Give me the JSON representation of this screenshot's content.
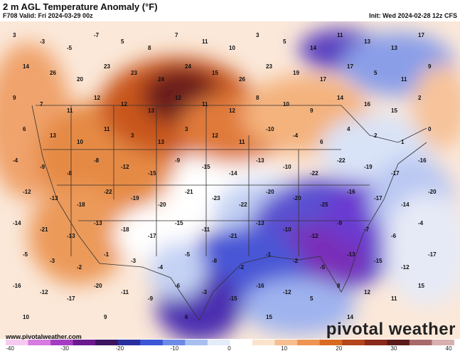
{
  "header": {
    "title": "2 m AGL Temperature Anomaly (°F)",
    "valid": "F708 Valid: Fri 2024-03-29 00z",
    "init": "Init: Wed 2024-02-28 12z CFS"
  },
  "footer": {
    "site": "www.pivotalweather.com",
    "brand": "pivotal weather"
  },
  "colorbar": {
    "ticks": [
      "-40",
      "-30",
      "-20",
      "-10",
      "0",
      "10",
      "20",
      "30",
      "40"
    ],
    "colors": [
      "#f7c9f0",
      "#d67be0",
      "#a53cc4",
      "#6b1a8e",
      "#3b1460",
      "#2a2fa0",
      "#3b57d6",
      "#6d8ae6",
      "#a9bff2",
      "#e3ecfb",
      "#ffffff",
      "#fbe3cc",
      "#f7be8f",
      "#ef9452",
      "#d86a22",
      "#b3461a",
      "#8a2a1a",
      "#5c1a1a",
      "#a86a6a",
      "#d8b0b0"
    ]
  },
  "map_values": {
    "labels": [
      "3",
      "-3",
      "-5",
      "-7",
      "5",
      "8",
      "7",
      "11",
      "10",
      "3",
      "5",
      "14",
      "11",
      "13",
      "13",
      "17",
      "14",
      "26",
      "20",
      "23",
      "23",
      "24",
      "24",
      "15",
      "26",
      "23",
      "19",
      "17",
      "17",
      "5",
      "11",
      "9",
      "9",
      "7",
      "11",
      "12",
      "12",
      "13",
      "12",
      "11",
      "12",
      "8",
      "10",
      "9",
      "14",
      "16",
      "15",
      "2",
      "6",
      "13",
      "10",
      "11",
      "3",
      "13",
      "3",
      "12",
      "11",
      "-10",
      "-4",
      "6",
      "4",
      "2",
      "1",
      "0",
      "-4",
      "-9",
      "-8",
      "-8",
      "-12",
      "-15",
      "-9",
      "-15",
      "-14",
      "-13",
      "-10",
      "-22",
      "-22",
      "-19",
      "-17",
      "-16",
      "-12",
      "-13",
      "-18",
      "-22",
      "-19",
      "-20",
      "-21",
      "-23",
      "-22",
      "-20",
      "-20",
      "-25",
      "-16",
      "-17",
      "-14",
      "-20",
      "-14",
      "-21",
      "-13",
      "-13",
      "-18",
      "-17",
      "-15",
      "-11",
      "-21",
      "-13",
      "-10",
      "-12",
      "-9",
      "-7",
      "-6",
      "-4",
      "-5",
      "-3",
      "-2",
      "-1",
      "-3",
      "-4",
      "-5",
      "-8",
      "-2",
      "-1",
      "-2",
      "-5",
      "-13",
      "-15",
      "-12",
      "-17",
      "-16",
      "-12",
      "-17",
      "-20",
      "-11",
      "-9",
      "-6",
      "-3",
      "-15",
      "-16",
      "-12",
      "5",
      "8",
      "12",
      "11",
      "15",
      "10",
      "16",
      "-3",
      "9",
      "13",
      "11",
      "6",
      "7",
      "10",
      "15",
      "12",
      "13",
      "14"
    ]
  }
}
